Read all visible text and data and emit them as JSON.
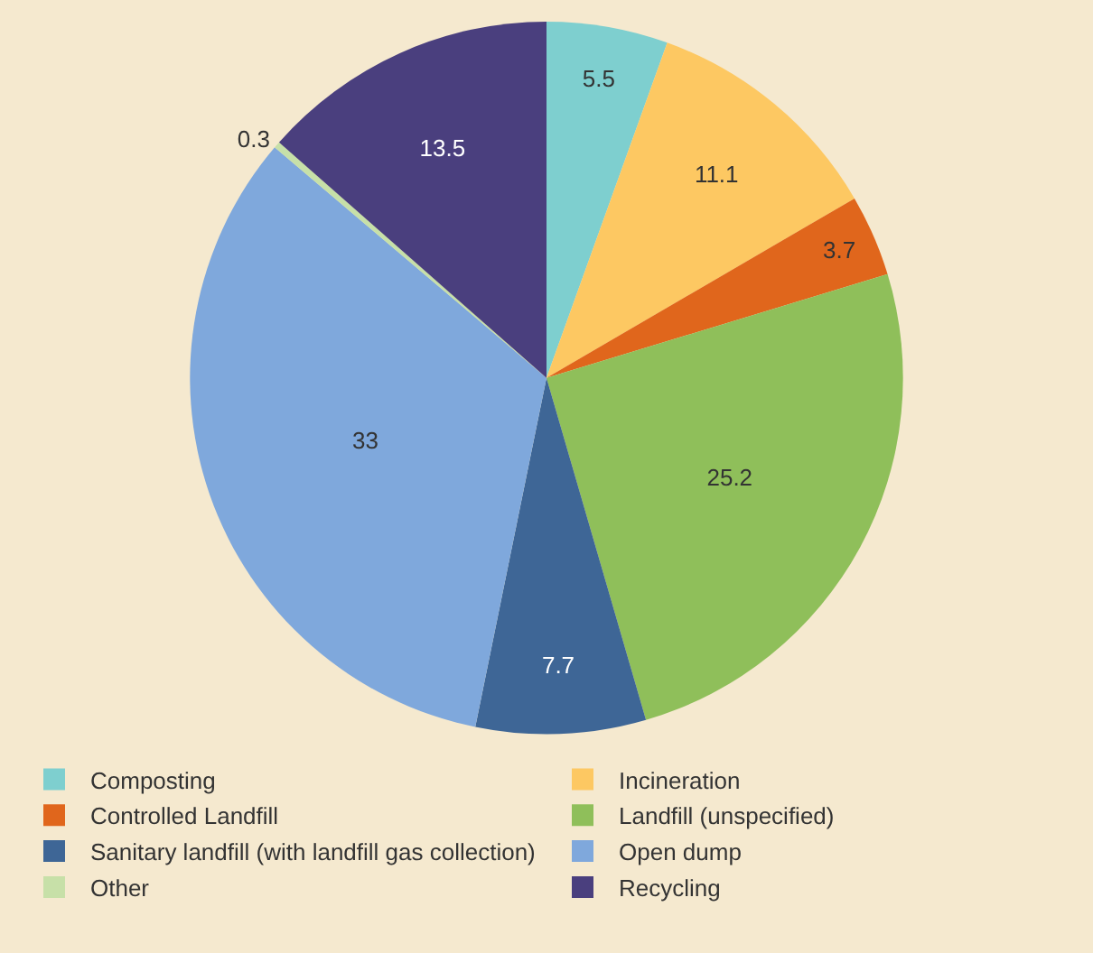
{
  "chart_data": {
    "type": "pie",
    "categories": [
      "Composting",
      "Incineration",
      "Controlled Landfill",
      "Landfill (unspecified)",
      "Sanitary landfill (with landfill gas collection)",
      "Open dump",
      "Other",
      "Recycling"
    ],
    "values": [
      5.5,
      11.1,
      3.7,
      25.2,
      7.7,
      33,
      0.3,
      13.5
    ],
    "colors": [
      "#7ecfcf",
      "#fdc862",
      "#e0661c",
      "#8fbf5a",
      "#3e6696",
      "#7fa8dc",
      "#c7e0a8",
      "#4a3f7e"
    ],
    "data_labels": true,
    "legend": "bottom"
  }
}
